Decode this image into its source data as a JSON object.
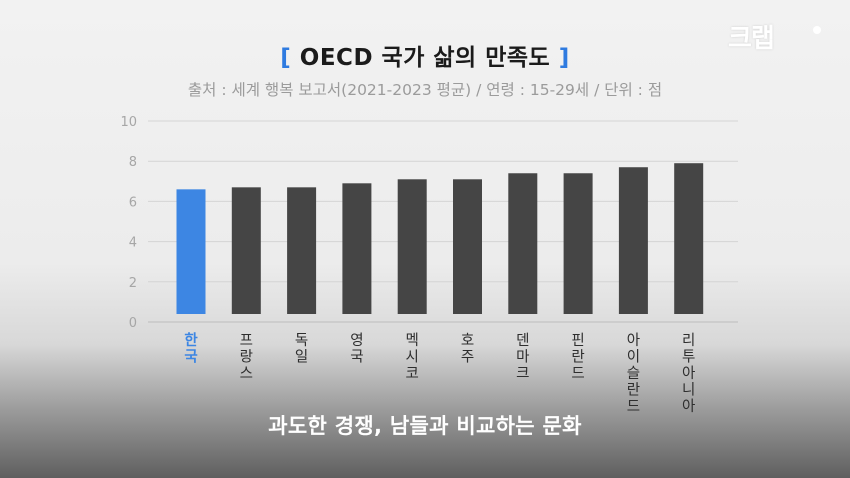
{
  "header": {
    "bracket_open": "[",
    "title": "OECD 국가 삶의 만족도",
    "bracket_close": "]",
    "subtitle": "출처 : 세계 행복 보고서(2021-2023 평균) / 연령 : 15-29세 / 단위 : 점"
  },
  "logo": {
    "text": "크랩"
  },
  "caption": "과도한 경쟁, 남들과 비교하는 문화",
  "colors": {
    "highlight": "#3d86e3",
    "bar": "#454545",
    "title_bracket": "#2f7be0"
  },
  "chart_data": {
    "type": "bar",
    "categories": [
      "한국",
      "프랑스",
      "독일",
      "영국",
      "멕시코",
      "호주",
      "덴마크",
      "핀란드",
      "아이슬란드",
      "리투아니아"
    ],
    "values": [
      6.6,
      6.7,
      6.7,
      6.9,
      7.1,
      7.1,
      7.4,
      7.4,
      7.7,
      7.9
    ],
    "highlight_category": "한국",
    "ylim": [
      0,
      10
    ],
    "yticks": [
      0,
      2,
      4,
      6,
      8,
      10
    ],
    "ytick_labels": [
      "0",
      "2",
      "4",
      "6",
      "8",
      "10"
    ],
    "grid": true
  }
}
